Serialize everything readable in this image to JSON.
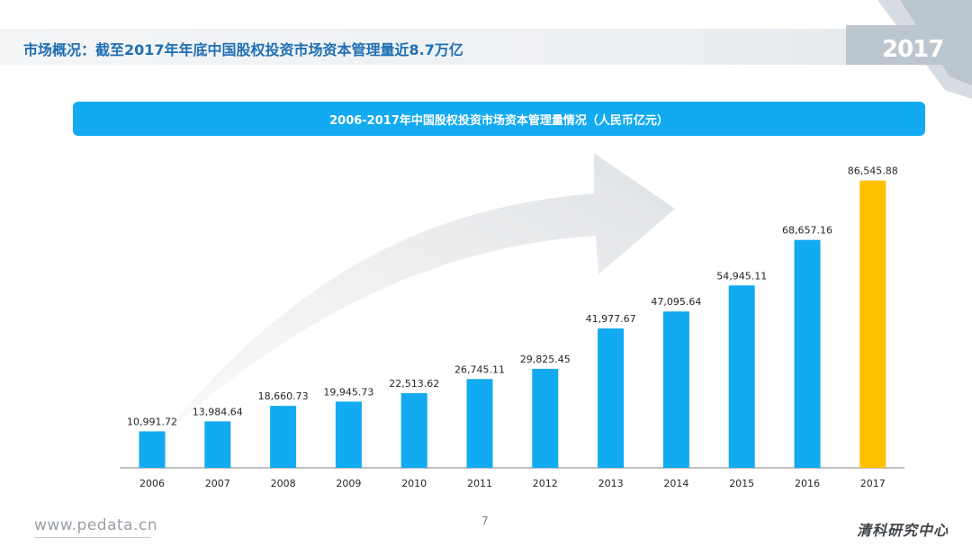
{
  "header": {
    "title": "市场概况：截至2017年年底中国股权投资市场资本管理量近8.7万亿",
    "year_badge": "2017"
  },
  "colors": {
    "accent": "#12aaf0",
    "bar": "#12aaf0",
    "highlight_bar": "#ffc000",
    "title": "#1f6fb3"
  },
  "chart_data": {
    "type": "bar",
    "title": "2006-2017年中国股权投资市场资本管理量情况（人民币亿元）",
    "categories": [
      "2006",
      "2007",
      "2008",
      "2009",
      "2010",
      "2011",
      "2012",
      "2013",
      "2014",
      "2015",
      "2016",
      "2017"
    ],
    "values": [
      10991.72,
      13984.64,
      18660.73,
      19945.73,
      22513.62,
      26745.11,
      29825.45,
      41977.67,
      47095.64,
      54945.11,
      68657.16,
      86545.88
    ],
    "value_labels": [
      "10,991.72",
      "13,984.64",
      "18,660.73",
      "19,945.73",
      "22,513.62",
      "26,745.11",
      "29,825.45",
      "41,977.67",
      "47,095.64",
      "54,945.11",
      "68,657.16",
      "86,545.88"
    ],
    "highlight_category": "2017",
    "ylim": [
      0,
      100000
    ],
    "grid": false
  },
  "footer": {
    "url": "www.pedata.cn",
    "page_number": "7",
    "brand": "清科研究中心"
  }
}
